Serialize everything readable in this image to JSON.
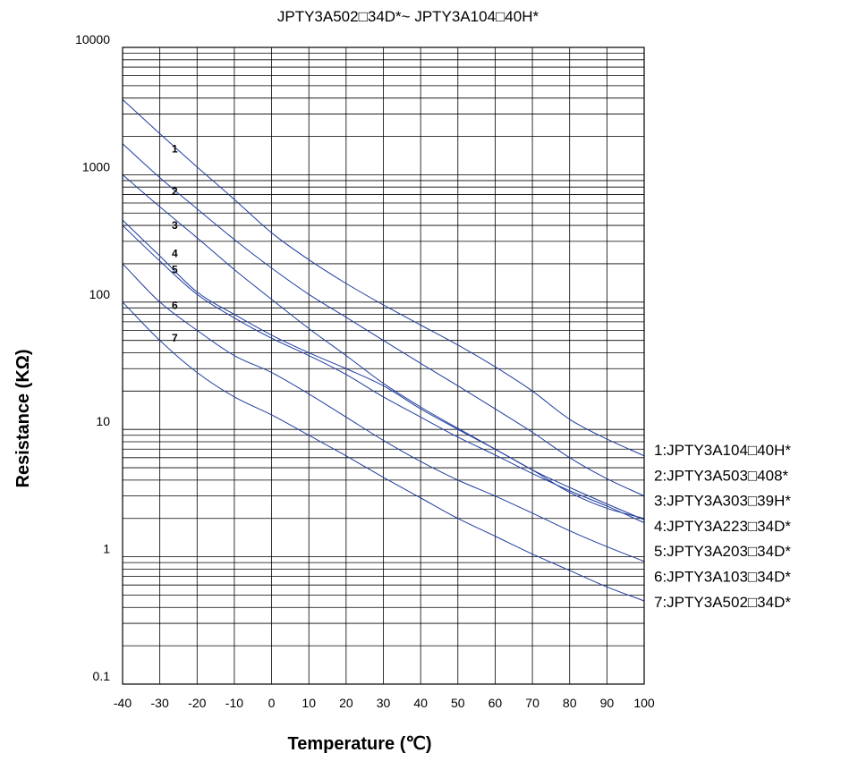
{
  "chart_data": {
    "type": "line",
    "title": "JPTY3A502□34D*~ JPTY3A104□40H*",
    "xlabel": "Temperature (℃)",
    "ylabel": "Resistance (KΩ)",
    "y_scale": "log",
    "xlim": [
      -40,
      100
    ],
    "ylim": [
      0.1,
      10000
    ],
    "grid": true,
    "x_ticks": [
      "-40",
      "-30",
      "-20",
      "-10",
      "0",
      "10",
      "20",
      "30",
      "40",
      "50",
      "60",
      "70",
      "80",
      "90",
      "100"
    ],
    "y_ticks": [
      "0.1",
      "1",
      "10",
      "100",
      "1000",
      "10000"
    ],
    "legend_position": "right",
    "series": [
      {
        "name": "1:JPTY3A104□40H*",
        "label": "1",
        "x": [
          -40,
          -30,
          -20,
          -10,
          0,
          10,
          20,
          30,
          40,
          50,
          60,
          70,
          80,
          90,
          100
        ],
        "y": [
          3900,
          2100,
          1150,
          640,
          350,
          215,
          140,
          95,
          66,
          46,
          31,
          20,
          12,
          8.4,
          6.2
        ]
      },
      {
        "name": "2:JPTY3A503□408*",
        "label": "2",
        "x": [
          -40,
          -30,
          -20,
          -10,
          0,
          10,
          20,
          30,
          40,
          50,
          60,
          70,
          80,
          90,
          100
        ],
        "y": [
          1750,
          950,
          540,
          310,
          185,
          115,
          76,
          50,
          33,
          22,
          14.5,
          9.5,
          6.0,
          4.1,
          3.0
        ]
      },
      {
        "name": "3:JPTY3A303□39H*",
        "label": "3",
        "x": [
          -40,
          -30,
          -20,
          -10,
          0,
          10,
          20,
          30,
          40,
          50,
          60,
          70,
          80,
          90,
          100
        ],
        "y": [
          1000,
          560,
          320,
          180,
          105,
          62,
          38,
          23,
          15,
          10.2,
          7.0,
          4.8,
          3.2,
          2.4,
          2.0
        ]
      },
      {
        "name": "4:JPTY3A223□34D*",
        "label": "4",
        "x": [
          -40,
          -30,
          -20,
          -10,
          0,
          10,
          20,
          30,
          40,
          50,
          60,
          70,
          80,
          90,
          100
        ],
        "y": [
          440,
          230,
          120,
          80,
          55,
          40,
          30,
          22,
          14.5,
          10,
          7.0,
          4.8,
          3.5,
          2.6,
          1.95
        ]
      },
      {
        "name": "5:JPTY3A203□34D*",
        "label": "5",
        "x": [
          -40,
          -30,
          -20,
          -10,
          0,
          10,
          20,
          30,
          40,
          50,
          60,
          70,
          80,
          90,
          100
        ],
        "y": [
          400,
          210,
          115,
          75,
          52,
          38,
          27,
          18,
          12.5,
          8.7,
          6.3,
          4.5,
          3.3,
          2.5,
          1.85
        ]
      },
      {
        "name": "6:JPTY3A103□34D*",
        "label": "6",
        "x": [
          -40,
          -30,
          -20,
          -10,
          0,
          10,
          20,
          30,
          40,
          50,
          60,
          70,
          80,
          90,
          100
        ],
        "y": [
          200,
          100,
          60,
          38,
          28,
          19,
          12.5,
          8.2,
          5.6,
          4.0,
          3.0,
          2.2,
          1.6,
          1.2,
          0.92
        ]
      },
      {
        "name": "7:JPTY3A502□34D*",
        "label": "7",
        "x": [
          -40,
          -30,
          -20,
          -10,
          0,
          10,
          20,
          30,
          40,
          50,
          60,
          70,
          80,
          90,
          100
        ],
        "y": [
          100,
          50,
          28,
          18,
          13,
          9,
          6.2,
          4.2,
          2.9,
          2.0,
          1.45,
          1.05,
          0.78,
          0.58,
          0.45
        ]
      }
    ],
    "series_label_x": -26,
    "series_label_y": [
      1600,
      740,
      400,
      240,
      180,
      94,
      52
    ],
    "colors": {
      "line": "#1f3c9e",
      "grid": "#000000",
      "text": "#000000"
    }
  }
}
